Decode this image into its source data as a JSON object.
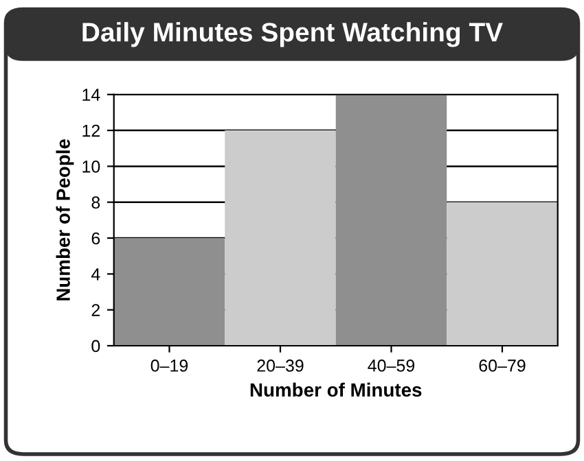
{
  "chart_data": {
    "type": "bar",
    "title": "Daily Minutes Spent Watching TV",
    "xlabel": "Number of Minutes",
    "ylabel": "Number of People",
    "categories": [
      "0–19",
      "20–39",
      "40–59",
      "60–79"
    ],
    "values": [
      6,
      12,
      14,
      8
    ],
    "colors": [
      "#8f8f8f",
      "#cccccc",
      "#8f8f8f",
      "#cccccc"
    ],
    "ylim": [
      0,
      14
    ],
    "yticks": [
      0,
      2,
      4,
      6,
      8,
      10,
      12,
      14
    ],
    "grid": "y"
  }
}
